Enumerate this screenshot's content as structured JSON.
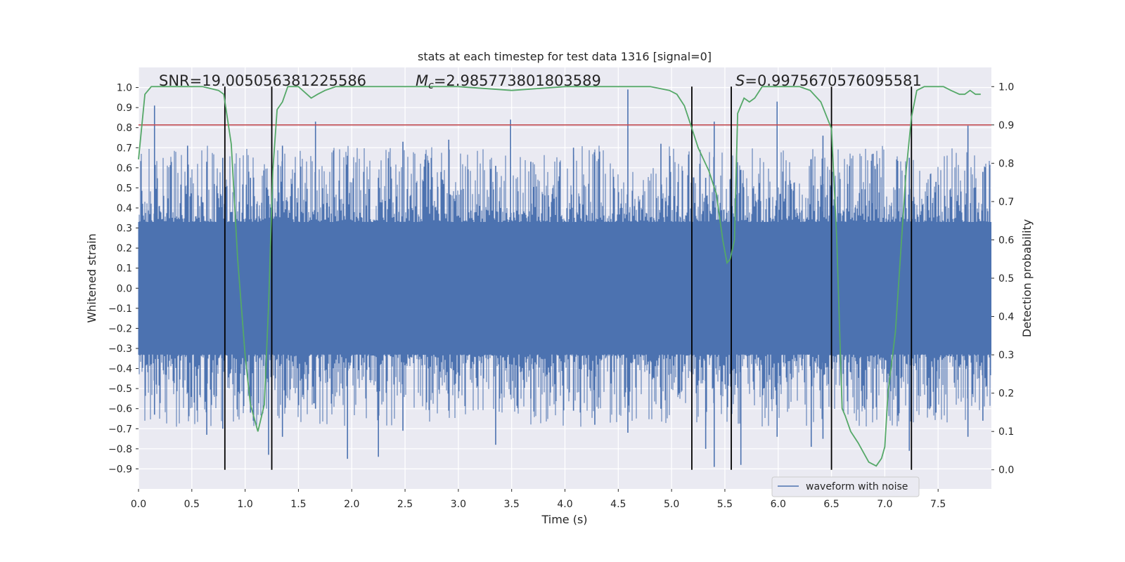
{
  "chart_data": {
    "type": "line",
    "title": "stats at each timestep for test data 1316 [signal=0]",
    "xlabel": "Time (s)",
    "ylabel": "Whitened strain",
    "y2label": "Detection probability",
    "xlim": [
      0.0,
      8.0
    ],
    "ylim": [
      -1.0,
      1.1
    ],
    "y2lim": [
      -0.05,
      1.05
    ],
    "xticks": [
      "0.0",
      "0.5",
      "1.0",
      "1.5",
      "2.0",
      "2.5",
      "3.0",
      "3.5",
      "4.0",
      "4.5",
      "5.0",
      "5.5",
      "6.0",
      "6.5",
      "7.0",
      "7.5"
    ],
    "yticks": [
      "1.0",
      "0.9",
      "0.8",
      "0.7",
      "0.6",
      "0.5",
      "0.4",
      "0.3",
      "0.2",
      "0.1",
      "0.0",
      "−0.1",
      "−0.2",
      "−0.3",
      "−0.4",
      "−0.5",
      "−0.6",
      "−0.7",
      "−0.8",
      "−0.9"
    ],
    "y2ticks": [
      "1.0",
      "0.9",
      "0.8",
      "0.7",
      "0.6",
      "0.5",
      "0.4",
      "0.3",
      "0.2",
      "0.1",
      "0.0"
    ],
    "annotations": {
      "snr": "SNR=19.005056381225586",
      "mc_symbol": "M",
      "mc_sub": "c",
      "mc_value": "=2.985773801803589",
      "s_symbol": "S",
      "s_value": "=0.9975670576095581"
    },
    "legend": {
      "label": "waveform with noise",
      "placement": "lower-right"
    },
    "grid": true,
    "colors": {
      "waveform": "#4c72b0",
      "probability": "#55a868",
      "threshold": "#c44e52",
      "markers": "#000000",
      "background": "#eaeaf2"
    },
    "series": [
      {
        "name": "waveform with noise",
        "kind": "noise-envelope",
        "dense_band": [
          -0.33,
          0.33
        ],
        "spikes": [
          [
            0.15,
            0.91,
            -0.63
          ],
          [
            0.46,
            0.71,
            -0.52
          ],
          [
            0.64,
            0.63,
            -0.73
          ],
          [
            0.79,
            0.65,
            -0.7
          ],
          [
            1.05,
            0.55,
            -0.62
          ],
          [
            1.22,
            0.46,
            -0.83
          ],
          [
            1.35,
            0.71,
            -0.74
          ],
          [
            1.66,
            0.83,
            -0.6
          ],
          [
            1.96,
            0.66,
            -0.85
          ],
          [
            2.25,
            0.55,
            -0.84
          ],
          [
            2.48,
            0.73,
            -0.71
          ],
          [
            2.91,
            0.74,
            -0.61
          ],
          [
            3.35,
            0.61,
            -0.78
          ],
          [
            3.49,
            0.84,
            -0.53
          ],
          [
            3.68,
            0.63,
            -0.55
          ],
          [
            4.08,
            0.7,
            -0.61
          ],
          [
            4.28,
            0.66,
            -0.68
          ],
          [
            4.59,
            0.99,
            -0.72
          ],
          [
            4.9,
            0.72,
            -0.6
          ],
          [
            5.32,
            0.55,
            -0.8
          ],
          [
            5.4,
            0.83,
            -0.89
          ],
          [
            5.65,
            0.59,
            -0.88
          ],
          [
            5.99,
            0.93,
            -0.74
          ],
          [
            6.31,
            0.59,
            -0.79
          ],
          [
            6.42,
            0.76,
            -0.75
          ],
          [
            6.89,
            0.67,
            -0.6
          ],
          [
            7.23,
            0.65,
            -0.81
          ],
          [
            7.48,
            0.53,
            -0.62
          ],
          [
            7.78,
            0.81,
            -0.74
          ],
          [
            7.92,
            0.58,
            -0.66
          ]
        ]
      },
      {
        "name": "",
        "axis": "right",
        "x": [
          0.0,
          0.06,
          0.12,
          0.2,
          0.4,
          0.6,
          0.75,
          0.8,
          0.87,
          0.93,
          1.0,
          1.05,
          1.12,
          1.18,
          1.22,
          1.26,
          1.3,
          1.35,
          1.4,
          1.45,
          1.5,
          1.58,
          1.62,
          1.68,
          1.75,
          1.85,
          1.95,
          2.05,
          2.5,
          3.0,
          3.5,
          4.0,
          4.5,
          4.8,
          4.98,
          5.05,
          5.12,
          5.18,
          5.25,
          5.3,
          5.35,
          5.42,
          5.48,
          5.52,
          5.55,
          5.59,
          5.62,
          5.68,
          5.73,
          5.78,
          5.85,
          5.9,
          5.95,
          6.0,
          6.1,
          6.2,
          6.3,
          6.4,
          6.5,
          6.55,
          6.6,
          6.63,
          6.68,
          6.75,
          6.85,
          6.92,
          6.97,
          7.0,
          7.03,
          7.1,
          7.2,
          7.25,
          7.3,
          7.37,
          7.45,
          7.55,
          7.62,
          7.7,
          7.75,
          7.8,
          7.85,
          7.9
        ],
        "y": [
          0.81,
          0.98,
          1.0,
          1.0,
          1.0,
          1.0,
          0.99,
          0.98,
          0.85,
          0.55,
          0.3,
          0.17,
          0.1,
          0.17,
          0.43,
          0.78,
          0.94,
          0.96,
          1.0,
          1.0,
          1.0,
          0.98,
          0.97,
          0.98,
          0.99,
          1.0,
          1.0,
          1.0,
          1.0,
          1.0,
          0.99,
          1.0,
          1.0,
          1.0,
          0.99,
          0.98,
          0.95,
          0.9,
          0.84,
          0.81,
          0.78,
          0.72,
          0.6,
          0.54,
          0.55,
          0.6,
          0.93,
          0.97,
          0.96,
          0.97,
          1.0,
          1.0,
          1.0,
          1.0,
          1.0,
          1.0,
          0.99,
          0.96,
          0.89,
          0.6,
          0.16,
          0.14,
          0.1,
          0.07,
          0.02,
          0.01,
          0.03,
          0.06,
          0.2,
          0.36,
          0.78,
          0.92,
          0.99,
          1.0,
          1.0,
          1.0,
          0.99,
          0.98,
          0.98,
          0.99,
          0.98,
          0.98
        ]
      },
      {
        "name": "",
        "kind": "threshold",
        "axis": "right",
        "y": 0.9
      }
    ],
    "marker_lines_x": [
      0.81,
      1.25,
      5.19,
      5.56,
      6.5,
      7.25
    ]
  }
}
